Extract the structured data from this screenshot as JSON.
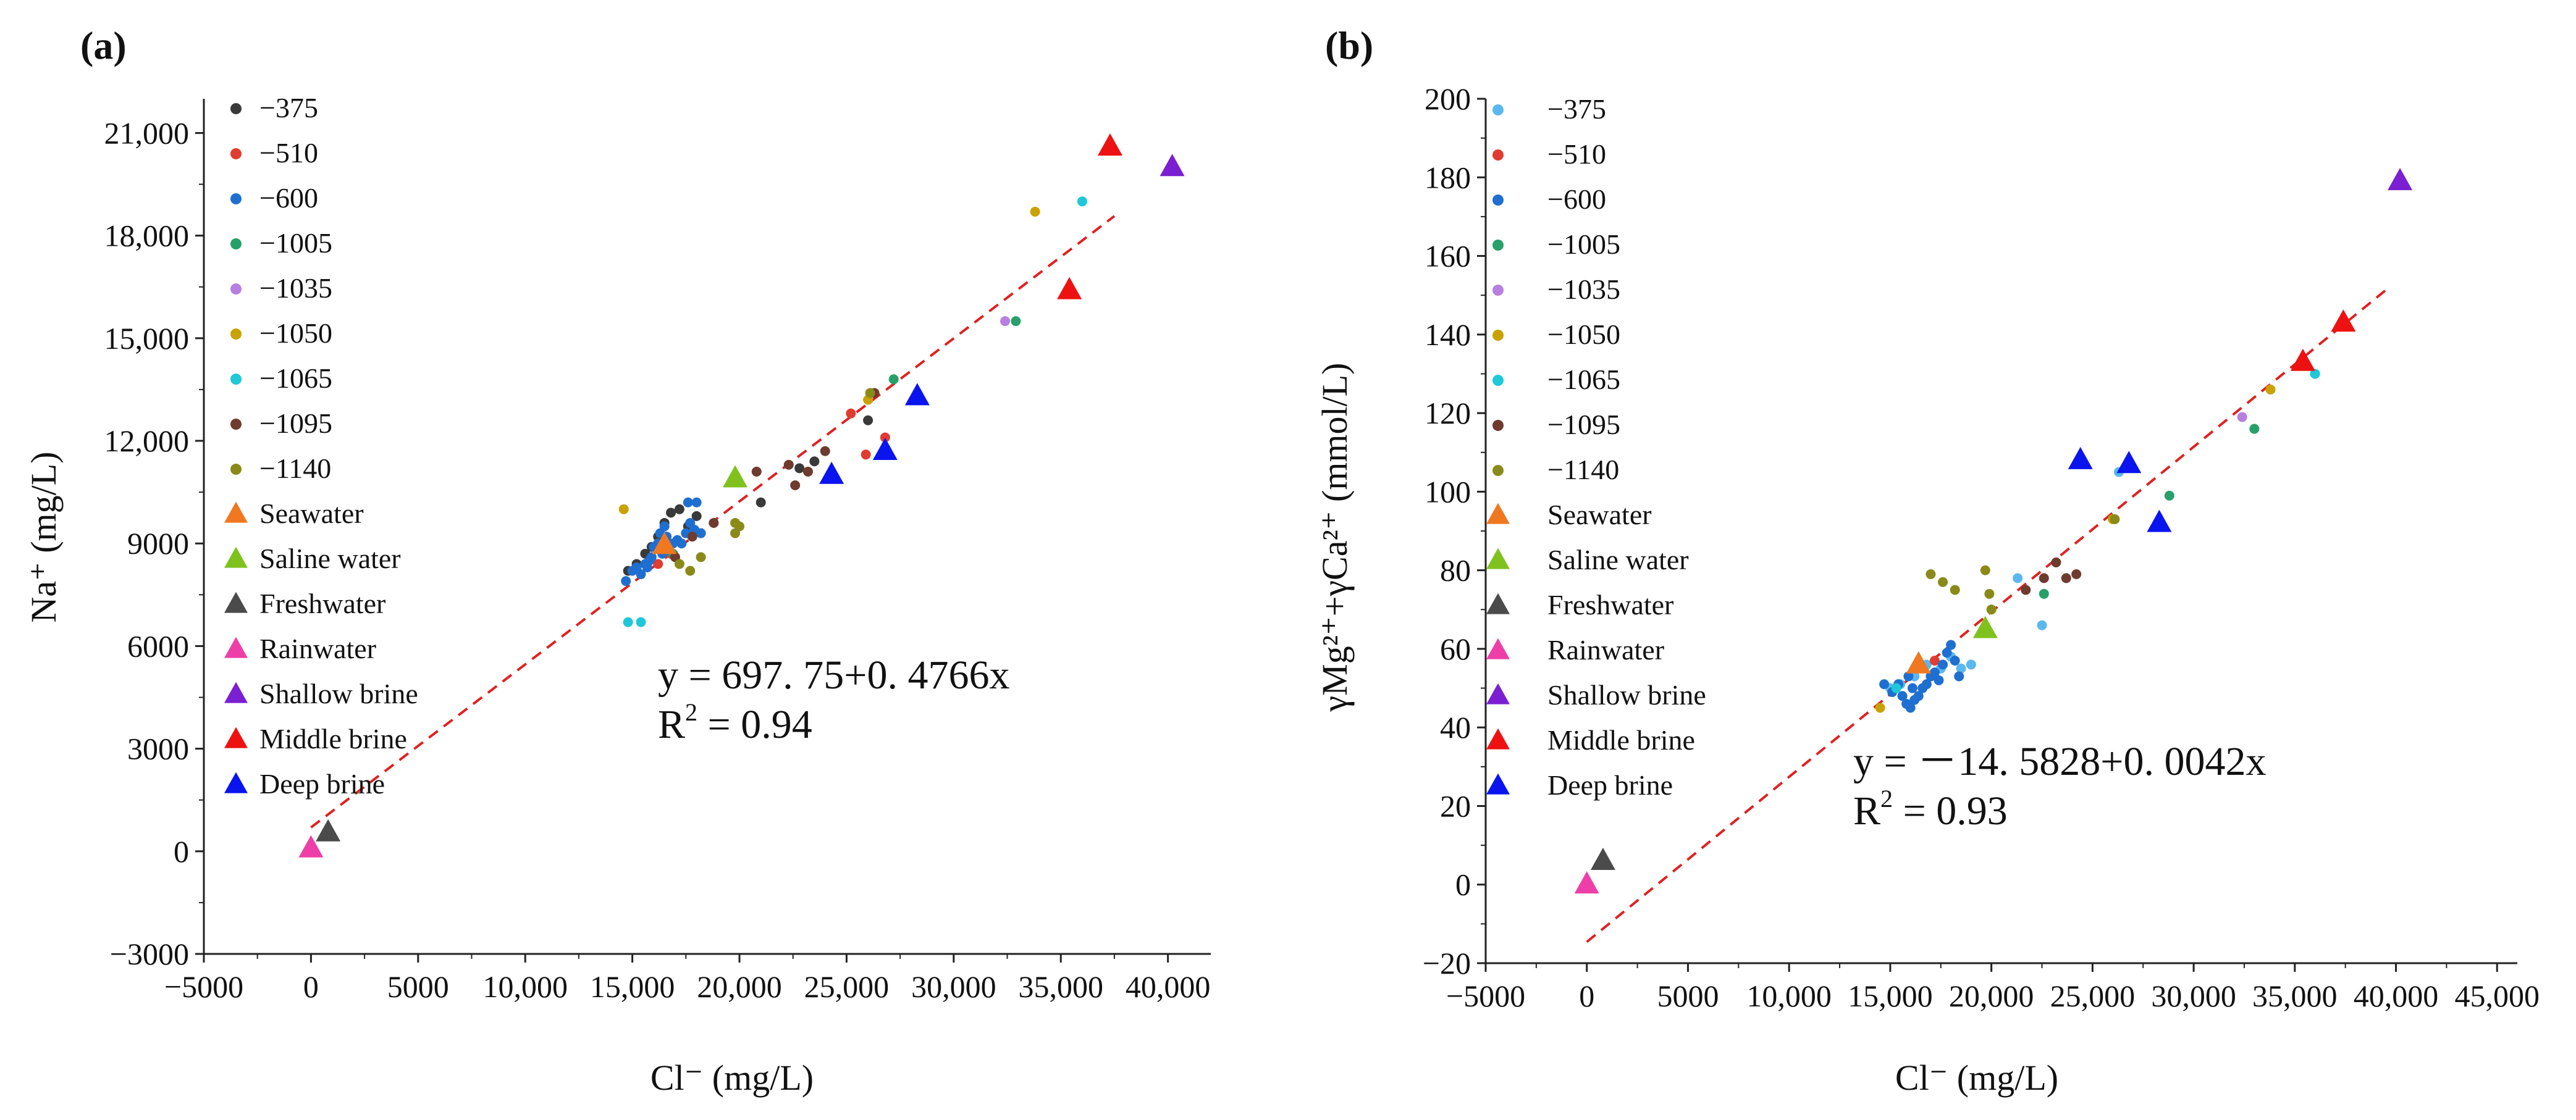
{
  "chart_data": [
    {
      "panel": "(a)",
      "type": "scatter",
      "xlabel": "Cl⁻ (mg/L)",
      "ylabel": "Na⁺ (mg/L)",
      "xlim": [
        -5000,
        42000
      ],
      "ylim": [
        -3000,
        22000
      ],
      "x_ticks": [
        -5000,
        0,
        5000,
        10000,
        15000,
        20000,
        25000,
        30000,
        35000,
        40000
      ],
      "x_tick_labels": [
        "−5000",
        "0",
        "5000",
        "10,000",
        "15,000",
        "20,000",
        "25,000",
        "30,000",
        "35,000",
        "40,000"
      ],
      "y_ticks": [
        -3000,
        0,
        3000,
        6000,
        9000,
        12000,
        15000,
        18000,
        21000
      ],
      "y_tick_labels": [
        "−3000",
        "0",
        "3000",
        "6000",
        "9000",
        "12,000",
        "15,000",
        "18,000",
        "21,000"
      ],
      "fit": {
        "intercept": 697.75,
        "slope": 0.4766,
        "x_range": [
          0,
          37500
        ],
        "label_line1": "y = 697. 75+0. 4766x",
        "label_line2": "R",
        "label_sup": "2",
        "label_rest": " = 0.94"
      },
      "series": [
        {
          "name": "−375",
          "marker": "dot",
          "color": "#3a3a3a",
          "points": [
            [
              14800,
              8200
            ],
            [
              15200,
              8400
            ],
            [
              15600,
              8700
            ],
            [
              15900,
              8900
            ],
            [
              16200,
              9200
            ],
            [
              16500,
              9600
            ],
            [
              16800,
              9900
            ],
            [
              17200,
              10000
            ],
            [
              17600,
              9500
            ],
            [
              18000,
              9800
            ],
            [
              21000,
              10200
            ],
            [
              22800,
              11200
            ],
            [
              23500,
              11400
            ],
            [
              26000,
              12600
            ]
          ]
        },
        {
          "name": "−510",
          "marker": "dot",
          "color": "#e03c31",
          "points": [
            [
              16200,
              8400
            ],
            [
              16800,
              8700
            ],
            [
              25200,
              12800
            ],
            [
              25900,
              11600
            ],
            [
              26800,
              12100
            ]
          ]
        },
        {
          "name": "−600",
          "marker": "dot",
          "color": "#1f6fd1",
          "points": [
            [
              14700,
              7900
            ],
            [
              15000,
              8200
            ],
            [
              15200,
              8300
            ],
            [
              15400,
              8100
            ],
            [
              15600,
              8400
            ],
            [
              15800,
              8500
            ],
            [
              15900,
              8600
            ],
            [
              16000,
              8900
            ],
            [
              16200,
              9000
            ],
            [
              16300,
              9300
            ],
            [
              16500,
              9500
            ],
            [
              16600,
              9200
            ],
            [
              16700,
              8800
            ],
            [
              16900,
              9000
            ],
            [
              17100,
              9100
            ],
            [
              17300,
              9000
            ],
            [
              17500,
              9300
            ],
            [
              17700,
              9600
            ],
            [
              17900,
              9400
            ],
            [
              18000,
              10200
            ],
            [
              17600,
              10200
            ],
            [
              18200,
              9300
            ],
            [
              16400,
              8700
            ],
            [
              15700,
              8300
            ]
          ]
        },
        {
          "name": "−1005",
          "marker": "dot",
          "color": "#27a06a",
          "points": [
            [
              16900,
              8700
            ],
            [
              32900,
              15500
            ],
            [
              27200,
              13800
            ]
          ]
        },
        {
          "name": "−1035",
          "marker": "dot",
          "color": "#b77fe0",
          "points": [
            [
              32400,
              15500
            ]
          ]
        },
        {
          "name": "−1050",
          "marker": "dot",
          "color": "#c9a200",
          "points": [
            [
              14600,
              10000
            ],
            [
              33800,
              18700
            ],
            [
              26000,
              13200
            ]
          ]
        },
        {
          "name": "−1065",
          "marker": "dot",
          "color": "#1ec8d8",
          "points": [
            [
              14800,
              6700
            ],
            [
              15400,
              6700
            ],
            [
              36000,
              19000
            ]
          ]
        },
        {
          "name": "−1095",
          "marker": "dot",
          "color": "#6e3b2e",
          "points": [
            [
              17000,
              8600
            ],
            [
              17800,
              9200
            ],
            [
              18800,
              9600
            ],
            [
              20800,
              11100
            ],
            [
              22300,
              11300
            ],
            [
              22600,
              10700
            ],
            [
              23200,
              11100
            ],
            [
              24000,
              11700
            ],
            [
              26300,
              13400
            ]
          ]
        },
        {
          "name": "−1140",
          "marker": "dot",
          "color": "#8a8a1a",
          "points": [
            [
              17200,
              8400
            ],
            [
              17700,
              8200
            ],
            [
              18200,
              8600
            ],
            [
              19800,
              9300
            ],
            [
              19800,
              9600
            ],
            [
              20000,
              9500
            ],
            [
              26100,
              13400
            ]
          ]
        },
        {
          "name": "Seawater",
          "marker": "triangle",
          "color": "#f07820",
          "points": [
            [
              16500,
              8950
            ]
          ]
        },
        {
          "name": "Saline water",
          "marker": "triangle",
          "color": "#7fc21e",
          "points": [
            [
              19800,
              10900
            ]
          ]
        },
        {
          "name": "Freshwater",
          "marker": "triangle",
          "color": "#4b4b4b",
          "points": [
            [
              800,
              550
            ]
          ]
        },
        {
          "name": "Rainwater",
          "marker": "triangle",
          "color": "#ee3fa8",
          "points": [
            [
              0,
              80
            ]
          ]
        },
        {
          "name": "Shallow brine",
          "marker": "triangle",
          "color": "#7a1fd1",
          "points": [
            [
              40200,
              20000
            ]
          ]
        },
        {
          "name": "Middle brine",
          "marker": "triangle",
          "color": "#ee1111",
          "points": [
            [
              35400,
              16400
            ],
            [
              37300,
              20600
            ]
          ]
        },
        {
          "name": "Deep brine",
          "marker": "triangle",
          "color": "#0a14ee",
          "points": [
            [
              24300,
              11000
            ],
            [
              26800,
              11700
            ],
            [
              28300,
              13300
            ]
          ]
        }
      ]
    },
    {
      "panel": "(b)",
      "type": "scatter",
      "xlabel": "Cl⁻ (mg/L)",
      "ylabel": "γMg²⁺+γCa²⁺ (mmol/L)",
      "xlim": [
        -5000,
        46000
      ],
      "ylim": [
        -20,
        200
      ],
      "x_ticks": [
        -5000,
        0,
        5000,
        10000,
        15000,
        20000,
        25000,
        30000,
        35000,
        40000,
        45000
      ],
      "x_tick_labels": [
        "−5000",
        "0",
        "5000",
        "10,000",
        "15,000",
        "20,000",
        "25,000",
        "30,000",
        "35,000",
        "40,000",
        "45,000"
      ],
      "y_ticks": [
        -20,
        0,
        20,
        40,
        60,
        80,
        100,
        120,
        140,
        160,
        180,
        200
      ],
      "y_tick_labels": [
        "−20",
        "0",
        "20",
        "40",
        "60",
        "80",
        "100",
        "120",
        "140",
        "160",
        "180",
        "200"
      ],
      "fit": {
        "intercept": -14.5828,
        "slope": 0.0042,
        "x_range": [
          0,
          39500
        ],
        "label_line1": "y = －14. 5828+0. 0042x",
        "label_line2": "R",
        "label_sup": "2",
        "label_rest": " = 0.93"
      },
      "series": [
        {
          "name": "−375",
          "marker": "dot",
          "color": "#5bb8ee",
          "points": [
            [
              15000,
              50
            ],
            [
              15500,
              51
            ],
            [
              16200,
              53
            ],
            [
              16800,
              56
            ],
            [
              17500,
              55
            ],
            [
              18000,
              58
            ],
            [
              18500,
              55
            ],
            [
              19000,
              56
            ],
            [
              21300,
              78
            ],
            [
              22500,
              66
            ],
            [
              26300,
              105
            ]
          ]
        },
        {
          "name": "−510",
          "marker": "dot",
          "color": "#e03c31",
          "points": [
            [
              16400,
              55
            ],
            [
              17200,
              57
            ]
          ]
        },
        {
          "name": "−600",
          "marker": "dot",
          "color": "#1f6fd1",
          "points": [
            [
              14700,
              51
            ],
            [
              15100,
              49
            ],
            [
              15400,
              51
            ],
            [
              15600,
              48
            ],
            [
              15800,
              46
            ],
            [
              16000,
              45
            ],
            [
              16200,
              47
            ],
            [
              16400,
              48
            ],
            [
              16600,
              50
            ],
            [
              16800,
              51
            ],
            [
              17000,
              53
            ],
            [
              17200,
              54
            ],
            [
              17400,
              52
            ],
            [
              17600,
              56
            ],
            [
              17800,
              59
            ],
            [
              18000,
              61
            ],
            [
              18200,
              57
            ],
            [
              18400,
              53
            ],
            [
              15900,
              53
            ],
            [
              16100,
              50
            ]
          ]
        },
        {
          "name": "−1005",
          "marker": "dot",
          "color": "#27a06a",
          "points": [
            [
              22600,
              74
            ],
            [
              28800,
              99
            ],
            [
              33000,
              116
            ],
            [
              36000,
              130
            ]
          ]
        },
        {
          "name": "−1035",
          "marker": "dot",
          "color": "#b77fe0",
          "points": [
            [
              32400,
              119
            ]
          ]
        },
        {
          "name": "−1050",
          "marker": "dot",
          "color": "#c9a200",
          "points": [
            [
              14500,
              45
            ],
            [
              26000,
              93
            ],
            [
              33800,
              126
            ]
          ]
        },
        {
          "name": "−1065",
          "marker": "dot",
          "color": "#1ec8d8",
          "points": [
            [
              15300,
              50
            ],
            [
              36000,
              130
            ]
          ]
        },
        {
          "name": "−1095",
          "marker": "dot",
          "color": "#6e3b2e",
          "points": [
            [
              21700,
              75
            ],
            [
              22600,
              78
            ],
            [
              23200,
              82
            ],
            [
              23700,
              78
            ],
            [
              24200,
              79
            ]
          ]
        },
        {
          "name": "−1140",
          "marker": "dot",
          "color": "#8a8a1a",
          "points": [
            [
              17000,
              79
            ],
            [
              17600,
              77
            ],
            [
              18200,
              75
            ],
            [
              19700,
              80
            ],
            [
              19900,
              74
            ],
            [
              20000,
              70
            ],
            [
              26100,
              93
            ]
          ]
        },
        {
          "name": "Seawater",
          "marker": "triangle",
          "color": "#f07820",
          "points": [
            [
              16400,
              56
            ]
          ]
        },
        {
          "name": "Saline water",
          "marker": "triangle",
          "color": "#7fc21e",
          "points": [
            [
              19700,
              65
            ]
          ]
        },
        {
          "name": "Freshwater",
          "marker": "triangle",
          "color": "#4b4b4b",
          "points": [
            [
              800,
              6
            ]
          ]
        },
        {
          "name": "Rainwater",
          "marker": "triangle",
          "color": "#ee3fa8",
          "points": [
            [
              0,
              0
            ]
          ]
        },
        {
          "name": "Shallow brine",
          "marker": "triangle",
          "color": "#7a1fd1",
          "points": [
            [
              40200,
              179
            ]
          ]
        },
        {
          "name": "Middle brine",
          "marker": "triangle",
          "color": "#ee1111",
          "points": [
            [
              35400,
              133
            ],
            [
              37400,
              143
            ]
          ]
        },
        {
          "name": "Deep brine",
          "marker": "triangle",
          "color": "#0a14ee",
          "points": [
            [
              24400,
              108
            ],
            [
              26800,
              107
            ],
            [
              28300,
              92
            ]
          ]
        }
      ]
    }
  ]
}
